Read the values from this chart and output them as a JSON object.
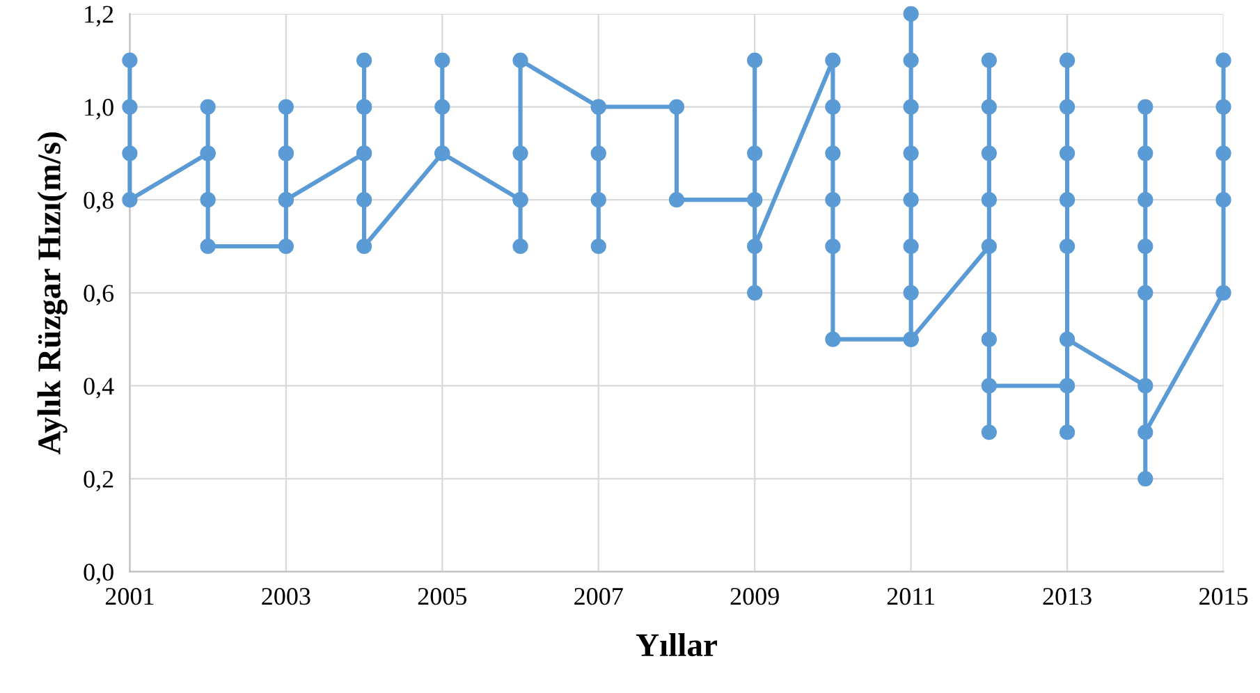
{
  "chart_data": {
    "type": "line",
    "xlabel": "Yıllar",
    "ylabel": "Aylık Rüzgar Hızı(m/s)",
    "series": [
      {
        "color": "#5b9bd5",
        "x": [
          2001,
          2001,
          2001,
          2001,
          2002,
          2002,
          2002,
          2002,
          2002,
          2003,
          2003,
          2003,
          2003,
          2003,
          2003,
          2004,
          2004,
          2004,
          2004,
          2004,
          2004,
          2004,
          2005,
          2005,
          2005,
          2005,
          2006,
          2006,
          2006,
          2006,
          2006,
          2007,
          2007,
          2007,
          2007,
          2007,
          2008,
          2008,
          2009,
          2009,
          2009,
          2009,
          2009,
          2010,
          2010,
          2010,
          2010,
          2010,
          2010,
          2011,
          2011,
          2011,
          2011,
          2011,
          2011,
          2011,
          2011,
          2011,
          2012,
          2012,
          2012,
          2012,
          2012,
          2012,
          2012,
          2012,
          2013,
          2013,
          2013,
          2013,
          2013,
          2013,
          2013,
          2013,
          2014,
          2014,
          2014,
          2014,
          2014,
          2014,
          2014,
          2014,
          2015,
          2015,
          2015,
          2015,
          2015
        ],
        "values": [
          1.1,
          1.0,
          0.9,
          0.8,
          0.9,
          1.0,
          0.9,
          0.8,
          0.7,
          0.7,
          0.8,
          0.9,
          1.0,
          0.9,
          0.8,
          0.9,
          1.0,
          1.1,
          1.0,
          0.9,
          0.8,
          0.7,
          0.9,
          1.0,
          1.1,
          0.9,
          0.8,
          0.7,
          0.8,
          0.9,
          1.1,
          1.0,
          0.9,
          0.8,
          0.7,
          1.0,
          1.0,
          0.8,
          0.8,
          0.9,
          1.1,
          0.6,
          0.7,
          1.1,
          1.0,
          0.9,
          0.8,
          0.7,
          0.5,
          0.5,
          0.6,
          0.7,
          0.8,
          0.9,
          1.0,
          1.1,
          1.2,
          0.5,
          0.7,
          0.8,
          0.9,
          1.0,
          1.1,
          0.3,
          0.5,
          0.4,
          0.4,
          0.3,
          1.1,
          1.0,
          0.9,
          0.8,
          0.7,
          0.5,
          0.4,
          1.0,
          0.9,
          0.8,
          0.7,
          0.6,
          0.2,
          0.3,
          0.6,
          1.1,
          1.0,
          0.9,
          0.8
        ]
      }
    ],
    "xlim": [
      2001,
      2015
    ],
    "xticks": [
      2001,
      2003,
      2005,
      2007,
      2009,
      2011,
      2013,
      2015
    ],
    "ylim": [
      0,
      1.2
    ],
    "yticks": [
      {
        "value": 0,
        "label": "0,0"
      },
      {
        "value": 0.2,
        "label": "0,2"
      },
      {
        "value": 0.4,
        "label": "0,4"
      },
      {
        "value": 0.6,
        "label": "0,6"
      },
      {
        "value": 0.8,
        "label": "0,8"
      },
      {
        "value": 1.0,
        "label": "1,0"
      },
      {
        "value": 1.2,
        "label": "1,2"
      }
    ],
    "grid": true,
    "marker": "circle",
    "line_style": "solid",
    "legend": false
  }
}
